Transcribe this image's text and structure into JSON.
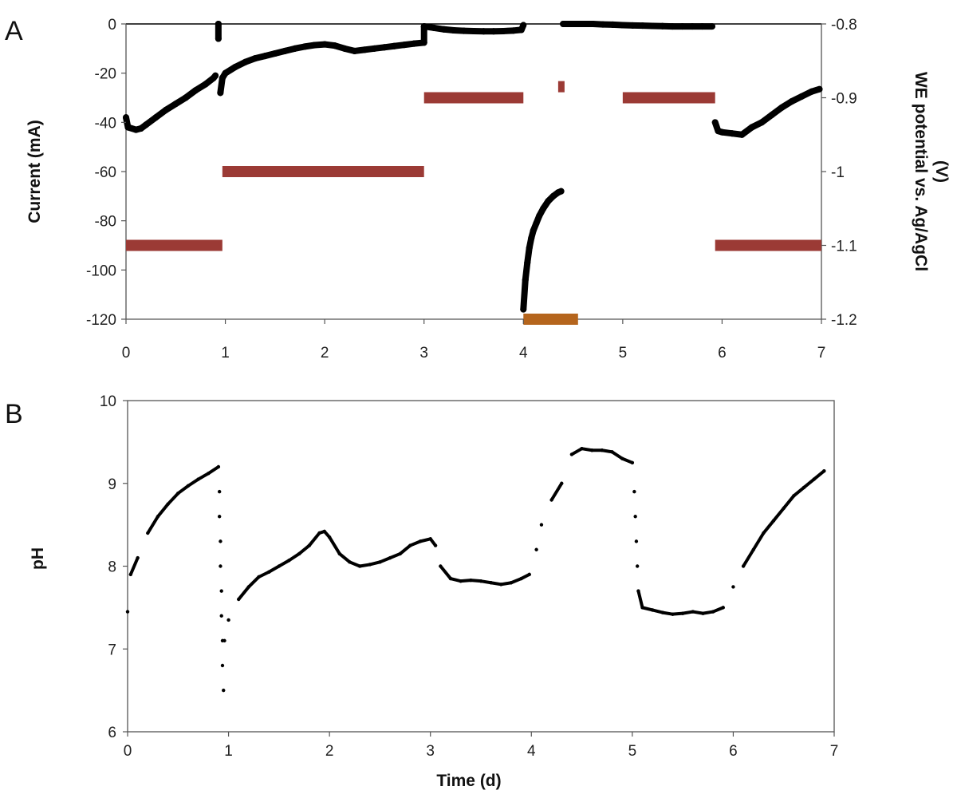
{
  "colors": {
    "current": "#000000",
    "potential": "#9b3a35",
    "potential_low": "#b5651d",
    "axis": "#555555"
  },
  "chart_data": [
    {
      "type": "scatter",
      "panel_label": "A",
      "xlabel": "",
      "ylabel": "Current (mA)",
      "y2label_line1": "WE potential vs. Ag/AgCl",
      "y2label_line2": "(V)",
      "xlim": [
        0,
        7
      ],
      "ylim": [
        -120,
        0
      ],
      "y2lim": [
        -1.2,
        -0.8
      ],
      "xticks": [
        "0",
        "1",
        "2",
        "3",
        "4",
        "5",
        "6",
        "7"
      ],
      "yticks": [
        "0",
        "-20",
        "-40",
        "-60",
        "-80",
        "-100",
        "-120"
      ],
      "y2ticks": [
        "-0.8",
        "-0.9",
        "-1",
        "-1.1",
        "-1.2"
      ],
      "current_mA": [
        {
          "x": 0.0,
          "y": -38
        },
        {
          "x": 0.02,
          "y": -42
        },
        {
          "x": 0.1,
          "y": -43
        },
        {
          "x": 0.15,
          "y": -42.5
        },
        {
          "x": 0.2,
          "y": -41
        },
        {
          "x": 0.3,
          "y": -38
        },
        {
          "x": 0.4,
          "y": -35
        },
        {
          "x": 0.5,
          "y": -32.5
        },
        {
          "x": 0.6,
          "y": -30
        },
        {
          "x": 0.7,
          "y": -27
        },
        {
          "x": 0.8,
          "y": -24.5
        },
        {
          "x": 0.88,
          "y": -22
        },
        {
          "x": 0.9,
          "y": -21
        },
        {
          "x": 0.93,
          "y": 0
        },
        {
          "x": 0.93,
          "y": -6
        },
        {
          "x": 0.95,
          "y": -28
        },
        {
          "x": 0.97,
          "y": -22
        },
        {
          "x": 1.0,
          "y": -20
        },
        {
          "x": 1.1,
          "y": -17.5
        },
        {
          "x": 1.2,
          "y": -15.5
        },
        {
          "x": 1.3,
          "y": -14
        },
        {
          "x": 1.4,
          "y": -13
        },
        {
          "x": 1.5,
          "y": -12
        },
        {
          "x": 1.6,
          "y": -11
        },
        {
          "x": 1.7,
          "y": -10
        },
        {
          "x": 1.8,
          "y": -9.2
        },
        {
          "x": 1.9,
          "y": -8.6
        },
        {
          "x": 2.0,
          "y": -8.3
        },
        {
          "x": 2.1,
          "y": -8.8
        },
        {
          "x": 2.2,
          "y": -10
        },
        {
          "x": 2.3,
          "y": -11
        },
        {
          "x": 2.4,
          "y": -10.5
        },
        {
          "x": 2.5,
          "y": -10
        },
        {
          "x": 2.6,
          "y": -9.5
        },
        {
          "x": 2.7,
          "y": -9
        },
        {
          "x": 2.8,
          "y": -8.5
        },
        {
          "x": 2.9,
          "y": -8
        },
        {
          "x": 3.0,
          "y": -7.6
        },
        {
          "x": 3.0,
          "y": -1
        },
        {
          "x": 3.1,
          "y": -1.6
        },
        {
          "x": 3.2,
          "y": -2.2
        },
        {
          "x": 3.3,
          "y": -2.6
        },
        {
          "x": 3.4,
          "y": -2.8
        },
        {
          "x": 3.5,
          "y": -2.9
        },
        {
          "x": 3.6,
          "y": -3
        },
        {
          "x": 3.7,
          "y": -3
        },
        {
          "x": 3.8,
          "y": -2.9
        },
        {
          "x": 3.9,
          "y": -2.7
        },
        {
          "x": 3.98,
          "y": -2.4
        },
        {
          "x": 4.0,
          "y": -0.5
        },
        {
          "x": 4.0,
          "y": -116
        },
        {
          "x": 4.02,
          "y": -104
        },
        {
          "x": 4.04,
          "y": -97
        },
        {
          "x": 4.06,
          "y": -91
        },
        {
          "x": 4.08,
          "y": -87
        },
        {
          "x": 4.1,
          "y": -84
        },
        {
          "x": 4.13,
          "y": -81
        },
        {
          "x": 4.16,
          "y": -78
        },
        {
          "x": 4.2,
          "y": -75
        },
        {
          "x": 4.25,
          "y": -72
        },
        {
          "x": 4.3,
          "y": -70
        },
        {
          "x": 4.35,
          "y": -68.5
        },
        {
          "x": 4.38,
          "y": -68
        },
        {
          "x": 4.4,
          "y": 0
        },
        {
          "x": 4.5,
          "y": 0
        },
        {
          "x": 4.6,
          "y": 0
        },
        {
          "x": 4.7,
          "y": 0
        },
        {
          "x": 4.8,
          "y": -0.2
        },
        {
          "x": 4.9,
          "y": -0.3
        },
        {
          "x": 5.0,
          "y": -0.5
        },
        {
          "x": 5.1,
          "y": -0.6
        },
        {
          "x": 5.2,
          "y": -0.7
        },
        {
          "x": 5.3,
          "y": -0.8
        },
        {
          "x": 5.4,
          "y": -0.9
        },
        {
          "x": 5.5,
          "y": -1
        },
        {
          "x": 5.6,
          "y": -1
        },
        {
          "x": 5.7,
          "y": -1
        },
        {
          "x": 5.8,
          "y": -1
        },
        {
          "x": 5.9,
          "y": -1
        },
        {
          "x": 5.93,
          "y": -40
        },
        {
          "x": 5.96,
          "y": -43.5
        },
        {
          "x": 6.0,
          "y": -44
        },
        {
          "x": 6.1,
          "y": -44.5
        },
        {
          "x": 6.2,
          "y": -45
        },
        {
          "x": 6.3,
          "y": -42
        },
        {
          "x": 6.4,
          "y": -40
        },
        {
          "x": 6.5,
          "y": -37
        },
        {
          "x": 6.6,
          "y": -34
        },
        {
          "x": 6.7,
          "y": -31.5
        },
        {
          "x": 6.8,
          "y": -29.5
        },
        {
          "x": 6.9,
          "y": -27.5
        },
        {
          "x": 6.98,
          "y": -26.5
        }
      ],
      "potential_V": [
        {
          "x0": 0.0,
          "x1": 0.97,
          "y": -1.1
        },
        {
          "x0": 0.97,
          "x1": 3.0,
          "y": -1.0
        },
        {
          "x0": 3.0,
          "x1": 4.0,
          "y": -0.9
        },
        {
          "x0": 4.35,
          "x1": 4.4,
          "y": -0.885
        },
        {
          "x0": 4.0,
          "x1": 4.55,
          "y": -1.2,
          "low": true
        },
        {
          "x0": 5.0,
          "x1": 5.93,
          "y": -0.9
        },
        {
          "x0": 5.93,
          "x1": 7.0,
          "y": -1.1
        }
      ]
    },
    {
      "type": "scatter",
      "panel_label": "B",
      "xlabel": "Time (d)",
      "ylabel": "pH",
      "xlim": [
        0,
        7
      ],
      "ylim": [
        6,
        10
      ],
      "xticks": [
        "0",
        "1",
        "2",
        "3",
        "4",
        "5",
        "6",
        "7"
      ],
      "yticks": [
        "10",
        "9",
        "8",
        "7",
        "6"
      ],
      "ph": [
        {
          "x": 0.0,
          "y": 7.45
        },
        {
          "x": 0.03,
          "y": 7.9
        },
        {
          "x": 0.1,
          "y": 8.1
        },
        {
          "x": 0.2,
          "y": 8.4
        },
        {
          "x": 0.3,
          "y": 8.6
        },
        {
          "x": 0.4,
          "y": 8.75
        },
        {
          "x": 0.5,
          "y": 8.88
        },
        {
          "x": 0.6,
          "y": 8.97
        },
        {
          "x": 0.7,
          "y": 9.05
        },
        {
          "x": 0.8,
          "y": 9.12
        },
        {
          "x": 0.9,
          "y": 9.2
        },
        {
          "x": 0.91,
          "y": 8.9
        },
        {
          "x": 0.91,
          "y": 8.6
        },
        {
          "x": 0.92,
          "y": 8.3
        },
        {
          "x": 0.92,
          "y": 8.0
        },
        {
          "x": 0.93,
          "y": 7.7
        },
        {
          "x": 0.93,
          "y": 7.4
        },
        {
          "x": 0.94,
          "y": 7.1
        },
        {
          "x": 0.94,
          "y": 6.8
        },
        {
          "x": 0.95,
          "y": 6.5
        },
        {
          "x": 0.96,
          "y": 7.1
        },
        {
          "x": 1.0,
          "y": 7.35
        },
        {
          "x": 1.1,
          "y": 7.6
        },
        {
          "x": 1.2,
          "y": 7.75
        },
        {
          "x": 1.3,
          "y": 7.87
        },
        {
          "x": 1.4,
          "y": 7.93
        },
        {
          "x": 1.5,
          "y": 8.0
        },
        {
          "x": 1.6,
          "y": 8.07
        },
        {
          "x": 1.7,
          "y": 8.15
        },
        {
          "x": 1.8,
          "y": 8.25
        },
        {
          "x": 1.9,
          "y": 8.4
        },
        {
          "x": 1.95,
          "y": 8.42
        },
        {
          "x": 2.0,
          "y": 8.35
        },
        {
          "x": 2.1,
          "y": 8.15
        },
        {
          "x": 2.2,
          "y": 8.05
        },
        {
          "x": 2.3,
          "y": 8.0
        },
        {
          "x": 2.4,
          "y": 8.02
        },
        {
          "x": 2.5,
          "y": 8.05
        },
        {
          "x": 2.6,
          "y": 8.1
        },
        {
          "x": 2.7,
          "y": 8.15
        },
        {
          "x": 2.8,
          "y": 8.25
        },
        {
          "x": 2.9,
          "y": 8.3
        },
        {
          "x": 3.0,
          "y": 8.33
        },
        {
          "x": 3.05,
          "y": 8.25
        },
        {
          "x": 3.1,
          "y": 8.0
        },
        {
          "x": 3.2,
          "y": 7.85
        },
        {
          "x": 3.3,
          "y": 7.82
        },
        {
          "x": 3.4,
          "y": 7.83
        },
        {
          "x": 3.5,
          "y": 7.82
        },
        {
          "x": 3.6,
          "y": 7.8
        },
        {
          "x": 3.7,
          "y": 7.78
        },
        {
          "x": 3.8,
          "y": 7.8
        },
        {
          "x": 3.9,
          "y": 7.85
        },
        {
          "x": 3.98,
          "y": 7.9
        },
        {
          "x": 4.05,
          "y": 8.2
        },
        {
          "x": 4.1,
          "y": 8.5
        },
        {
          "x": 4.2,
          "y": 8.8
        },
        {
          "x": 4.3,
          "y": 9.0
        },
        {
          "x": 4.4,
          "y": 9.35
        },
        {
          "x": 4.5,
          "y": 9.42
        },
        {
          "x": 4.6,
          "y": 9.4
        },
        {
          "x": 4.7,
          "y": 9.4
        },
        {
          "x": 4.8,
          "y": 9.38
        },
        {
          "x": 4.9,
          "y": 9.3
        },
        {
          "x": 5.0,
          "y": 9.25
        },
        {
          "x": 5.02,
          "y": 8.9
        },
        {
          "x": 5.03,
          "y": 8.6
        },
        {
          "x": 5.04,
          "y": 8.3
        },
        {
          "x": 5.05,
          "y": 8.0
        },
        {
          "x": 5.06,
          "y": 7.7
        },
        {
          "x": 5.1,
          "y": 7.5
        },
        {
          "x": 5.2,
          "y": 7.47
        },
        {
          "x": 5.3,
          "y": 7.44
        },
        {
          "x": 5.4,
          "y": 7.42
        },
        {
          "x": 5.5,
          "y": 7.43
        },
        {
          "x": 5.6,
          "y": 7.45
        },
        {
          "x": 5.7,
          "y": 7.43
        },
        {
          "x": 5.8,
          "y": 7.45
        },
        {
          "x": 5.9,
          "y": 7.5
        },
        {
          "x": 6.0,
          "y": 7.75
        },
        {
          "x": 6.1,
          "y": 8.0
        },
        {
          "x": 6.2,
          "y": 8.2
        },
        {
          "x": 6.3,
          "y": 8.4
        },
        {
          "x": 6.4,
          "y": 8.55
        },
        {
          "x": 6.5,
          "y": 8.7
        },
        {
          "x": 6.6,
          "y": 8.85
        },
        {
          "x": 6.7,
          "y": 8.95
        },
        {
          "x": 6.8,
          "y": 9.05
        },
        {
          "x": 6.9,
          "y": 9.15
        }
      ]
    }
  ]
}
